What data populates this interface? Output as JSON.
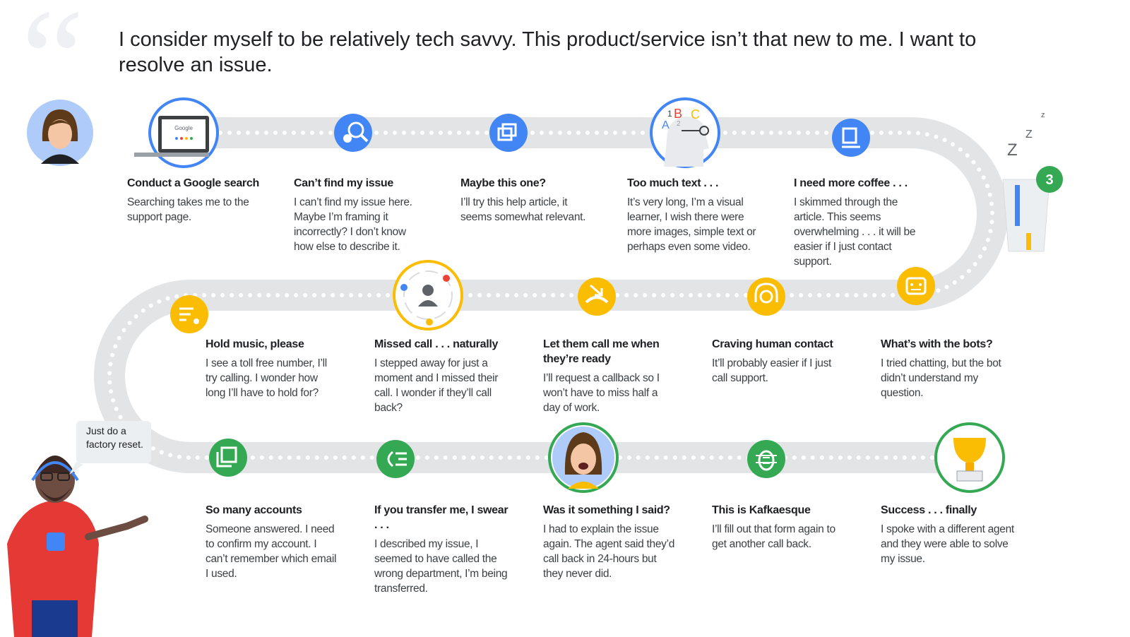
{
  "quote": "I consider myself to be relatively tech savvy. This product/service isn’t that new to me. I want to resolve an issue.",
  "steps": [
    {
      "title": "Conduct a Google search",
      "text": "Searching takes me to the support page."
    },
    {
      "title": "Can’t find my issue",
      "text": "I can’t find my issue here. Maybe I’m framing it incorrectly? I don’t know how else to describe it."
    },
    {
      "title": "Maybe this one?",
      "text": "I’ll try this help article, it seems somewhat relevant."
    },
    {
      "title": "Too much text . . .",
      "text": "It’s very long, I’m a visual learner, I wish there were more images, simple text or perhaps even some video."
    },
    {
      "title": "I need more coffee . . .",
      "text": "I skimmed through the article. This seems overwhelming . . . it will be easier if I just contact support."
    },
    {
      "title": "Hold music, please",
      "text": "I see a toll free number, I’ll try calling. I wonder how long I’ll have to hold for?"
    },
    {
      "title": "Missed call . . . naturally",
      "text": "I stepped away for just a moment and I missed their call. I wonder if they’ll call back?"
    },
    {
      "title": "Let them call me when they’re ready",
      "text": "I’ll request a callback so I won’t have to miss half a day of work."
    },
    {
      "title": "Craving human contact",
      "text": "It’ll probably easier if I just call support."
    },
    {
      "title": "What’s with the bots?",
      "text": "I tried chatting, but the bot didn’t understand my question."
    },
    {
      "title": "So many accounts",
      "text": "Someone answered. I need to confirm my account. I can’t remember which email I used."
    },
    {
      "title": "If you transfer me, I swear . . .",
      "text": "I described my issue, I seemed to have called the wrong department, I’m being transferred."
    },
    {
      "title": "Was it something I said?",
      "text": "I had to explain the issue again. The agent said they’d call back in 24-hours but they never did."
    },
    {
      "title": "This is Kafkaesque",
      "text": "I’ll fill out that form again to get another call back."
    },
    {
      "title": "Success . . . finally",
      "text": "I spoke with a different agent and they were able to solve my issue."
    }
  ],
  "speech_bubble": "Just do a factory reset.",
  "cup_badge": 3,
  "sleep": [
    "Z",
    "Z",
    "z"
  ],
  "laptop_screen": "Google",
  "letters": [
    "1",
    "B",
    "C",
    "A",
    "2"
  ]
}
